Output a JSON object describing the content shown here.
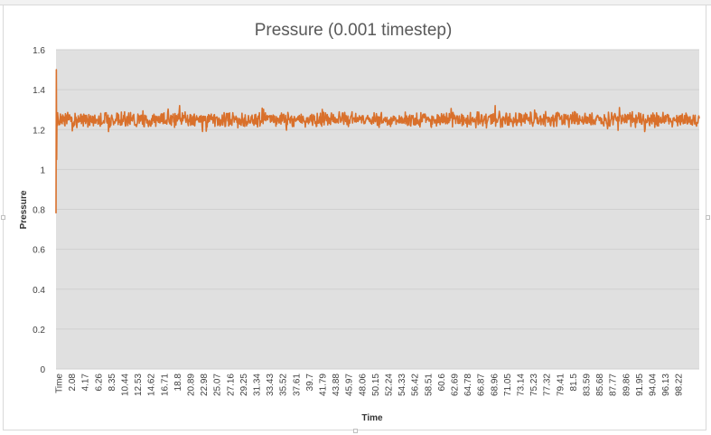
{
  "chart_data": {
    "type": "line",
    "title": "Pressure (0.001 timestep)",
    "xlabel": "Time",
    "ylabel": "Pressure",
    "ylim": [
      0,
      1.6
    ],
    "yticks": [
      "0",
      "0.2",
      "0.4",
      "0.6",
      "0.8",
      "1",
      "1.2",
      "1.4",
      "1.6"
    ],
    "xticks": [
      "Time",
      "2.08",
      "4.17",
      "6.26",
      "8.35",
      "10.44",
      "12.53",
      "14.62",
      "16.71",
      "18.8",
      "20.89",
      "22.98",
      "25.07",
      "27.16",
      "29.25",
      "31.34",
      "33.43",
      "35.52",
      "37.61",
      "39.7",
      "41.79",
      "43.88",
      "45.97",
      "48.06",
      "50.15",
      "52.24",
      "54.33",
      "56.42",
      "58.51",
      "60.6",
      "62.69",
      "64.78",
      "66.87",
      "68.96",
      "71.05",
      "73.14",
      "75.23",
      "77.32",
      "79.41",
      "81.5",
      "83.59",
      "85.68",
      "87.77",
      "89.86",
      "91.95",
      "94.04",
      "96.13",
      "98.22"
    ],
    "xlim": [
      0,
      100
    ],
    "grid": true,
    "plot_area_color": "#e0e0e0",
    "series": [
      {
        "color": "#d9702b",
        "mean": 1.25,
        "band": [
          1.19,
          1.32
        ],
        "initial_transient": [
          {
            "x": 0.0,
            "y": 0.78
          },
          {
            "x": 0.05,
            "y": 1.5
          },
          {
            "x": 0.1,
            "y": 1.05
          },
          {
            "x": 0.15,
            "y": 1.28
          },
          {
            "x": 0.2,
            "y": 1.22
          }
        ]
      }
    ]
  }
}
